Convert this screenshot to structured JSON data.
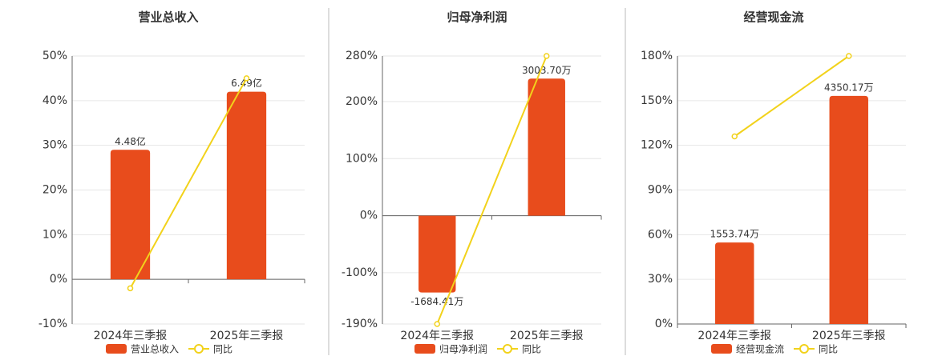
{
  "chart_data": [
    {
      "type": "bar",
      "title": "营业总收入",
      "categories": [
        "2024年三季报",
        "2025年三季报"
      ],
      "series": [
        {
          "name": "营业总收入",
          "color": "#e84c1c",
          "axis": "y2",
          "values": [
            4.48,
            6.49
          ],
          "value_labels": [
            "4.48亿",
            "6.49亿"
          ]
        },
        {
          "name": "同比",
          "color": "#f2d21b",
          "type": "line",
          "values": [
            -2,
            45
          ]
        }
      ],
      "ylim": [
        -10,
        50
      ],
      "yticks": [
        {
          "value": -10,
          "label": "-10%"
        },
        {
          "value": 0,
          "label": "0%"
        },
        {
          "value": 10,
          "label": "10%"
        },
        {
          "value": 20,
          "label": "20%"
        },
        {
          "value": 30,
          "label": "30%"
        },
        {
          "value": 40,
          "label": "40%"
        },
        {
          "value": 50,
          "label": "50%"
        }
      ],
      "y2lim": [
        -1.545,
        7.725
      ],
      "grid": true
    },
    {
      "type": "bar",
      "title": "归母净利润",
      "categories": [
        "2024年三季报",
        "2025年三季报"
      ],
      "series": [
        {
          "name": "归母净利润",
          "color": "#e84c1c",
          "axis": "y2",
          "values": [
            -1684.41,
            3003.7
          ],
          "value_labels": [
            "-1684.41万",
            "3003.70万"
          ]
        },
        {
          "name": "同比",
          "color": "#f2d21b",
          "type": "line",
          "values": [
            -190,
            280
          ]
        }
      ],
      "ylim": [
        -190,
        280
      ],
      "yticks": [
        {
          "value": -190,
          "label": "-190%"
        },
        {
          "value": -100,
          "label": "-100%"
        },
        {
          "value": 0,
          "label": "0%"
        },
        {
          "value": 100,
          "label": "100%"
        },
        {
          "value": 200,
          "label": "200%"
        },
        {
          "value": 280,
          "label": "280%"
        }
      ],
      "y2lim": [
        -2375,
        3500
      ],
      "grid": true
    },
    {
      "type": "bar",
      "title": "经营现金流",
      "categories": [
        "2024年三季报",
        "2025年三季报"
      ],
      "series": [
        {
          "name": "经营现金流",
          "color": "#e84c1c",
          "axis": "y2",
          "values": [
            1553.74,
            4350.17
          ],
          "value_labels": [
            "1553.74万",
            "4350.17万"
          ]
        },
        {
          "name": "同比",
          "color": "#f2d21b",
          "type": "line",
          "values": [
            126,
            180
          ]
        }
      ],
      "ylim": [
        0,
        180
      ],
      "yticks": [
        {
          "value": 0,
          "label": "0%"
        },
        {
          "value": 30,
          "label": "30%"
        },
        {
          "value": 60,
          "label": "60%"
        },
        {
          "value": 90,
          "label": "90%"
        },
        {
          "value": 120,
          "label": "120%"
        },
        {
          "value": 150,
          "label": "150%"
        },
        {
          "value": 180,
          "label": "180%"
        }
      ],
      "y2lim": [
        0,
        5112
      ],
      "grid": true
    }
  ]
}
